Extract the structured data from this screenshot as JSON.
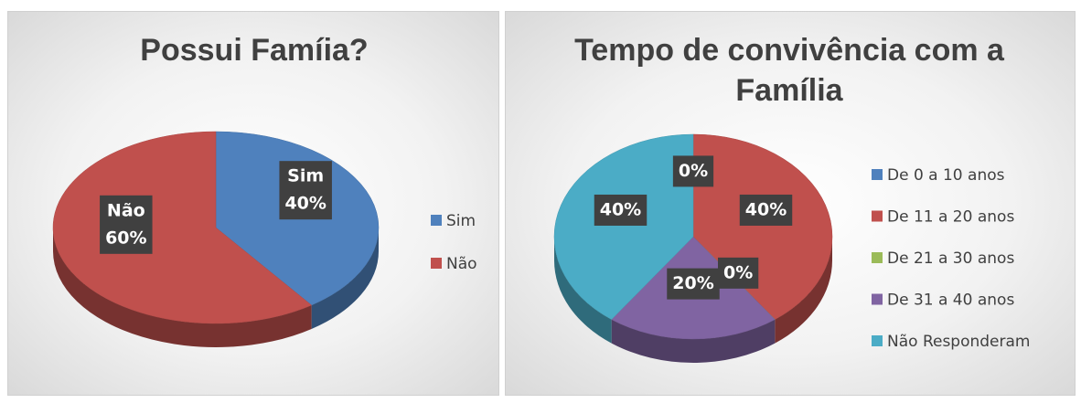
{
  "chart_data": [
    {
      "type": "pie3d",
      "title": "Possui Famíia?",
      "categories": [
        "Sim",
        "Não"
      ],
      "values": [
        40,
        60
      ],
      "value_labels": [
        "40%",
        "60%"
      ],
      "colors": [
        "#4f81bd",
        "#c0504d"
      ],
      "label_category": true,
      "legend": "right"
    },
    {
      "type": "pie3d",
      "title": "Tempo de convivência com a Família",
      "categories": [
        "De 0 a 10 anos",
        "De 11 a 20 anos",
        "De 21 a 30 anos",
        "De 31 a 40 anos",
        "Não Responderam"
      ],
      "values": [
        0,
        40,
        0,
        20,
        40
      ],
      "value_labels": [
        "0%",
        "40%",
        "0%",
        "20%",
        "40%"
      ],
      "colors": [
        "#4f81bd",
        "#c0504d",
        "#9bbb59",
        "#8064a2",
        "#4bacc6"
      ],
      "label_category": false,
      "legend": "right"
    }
  ]
}
